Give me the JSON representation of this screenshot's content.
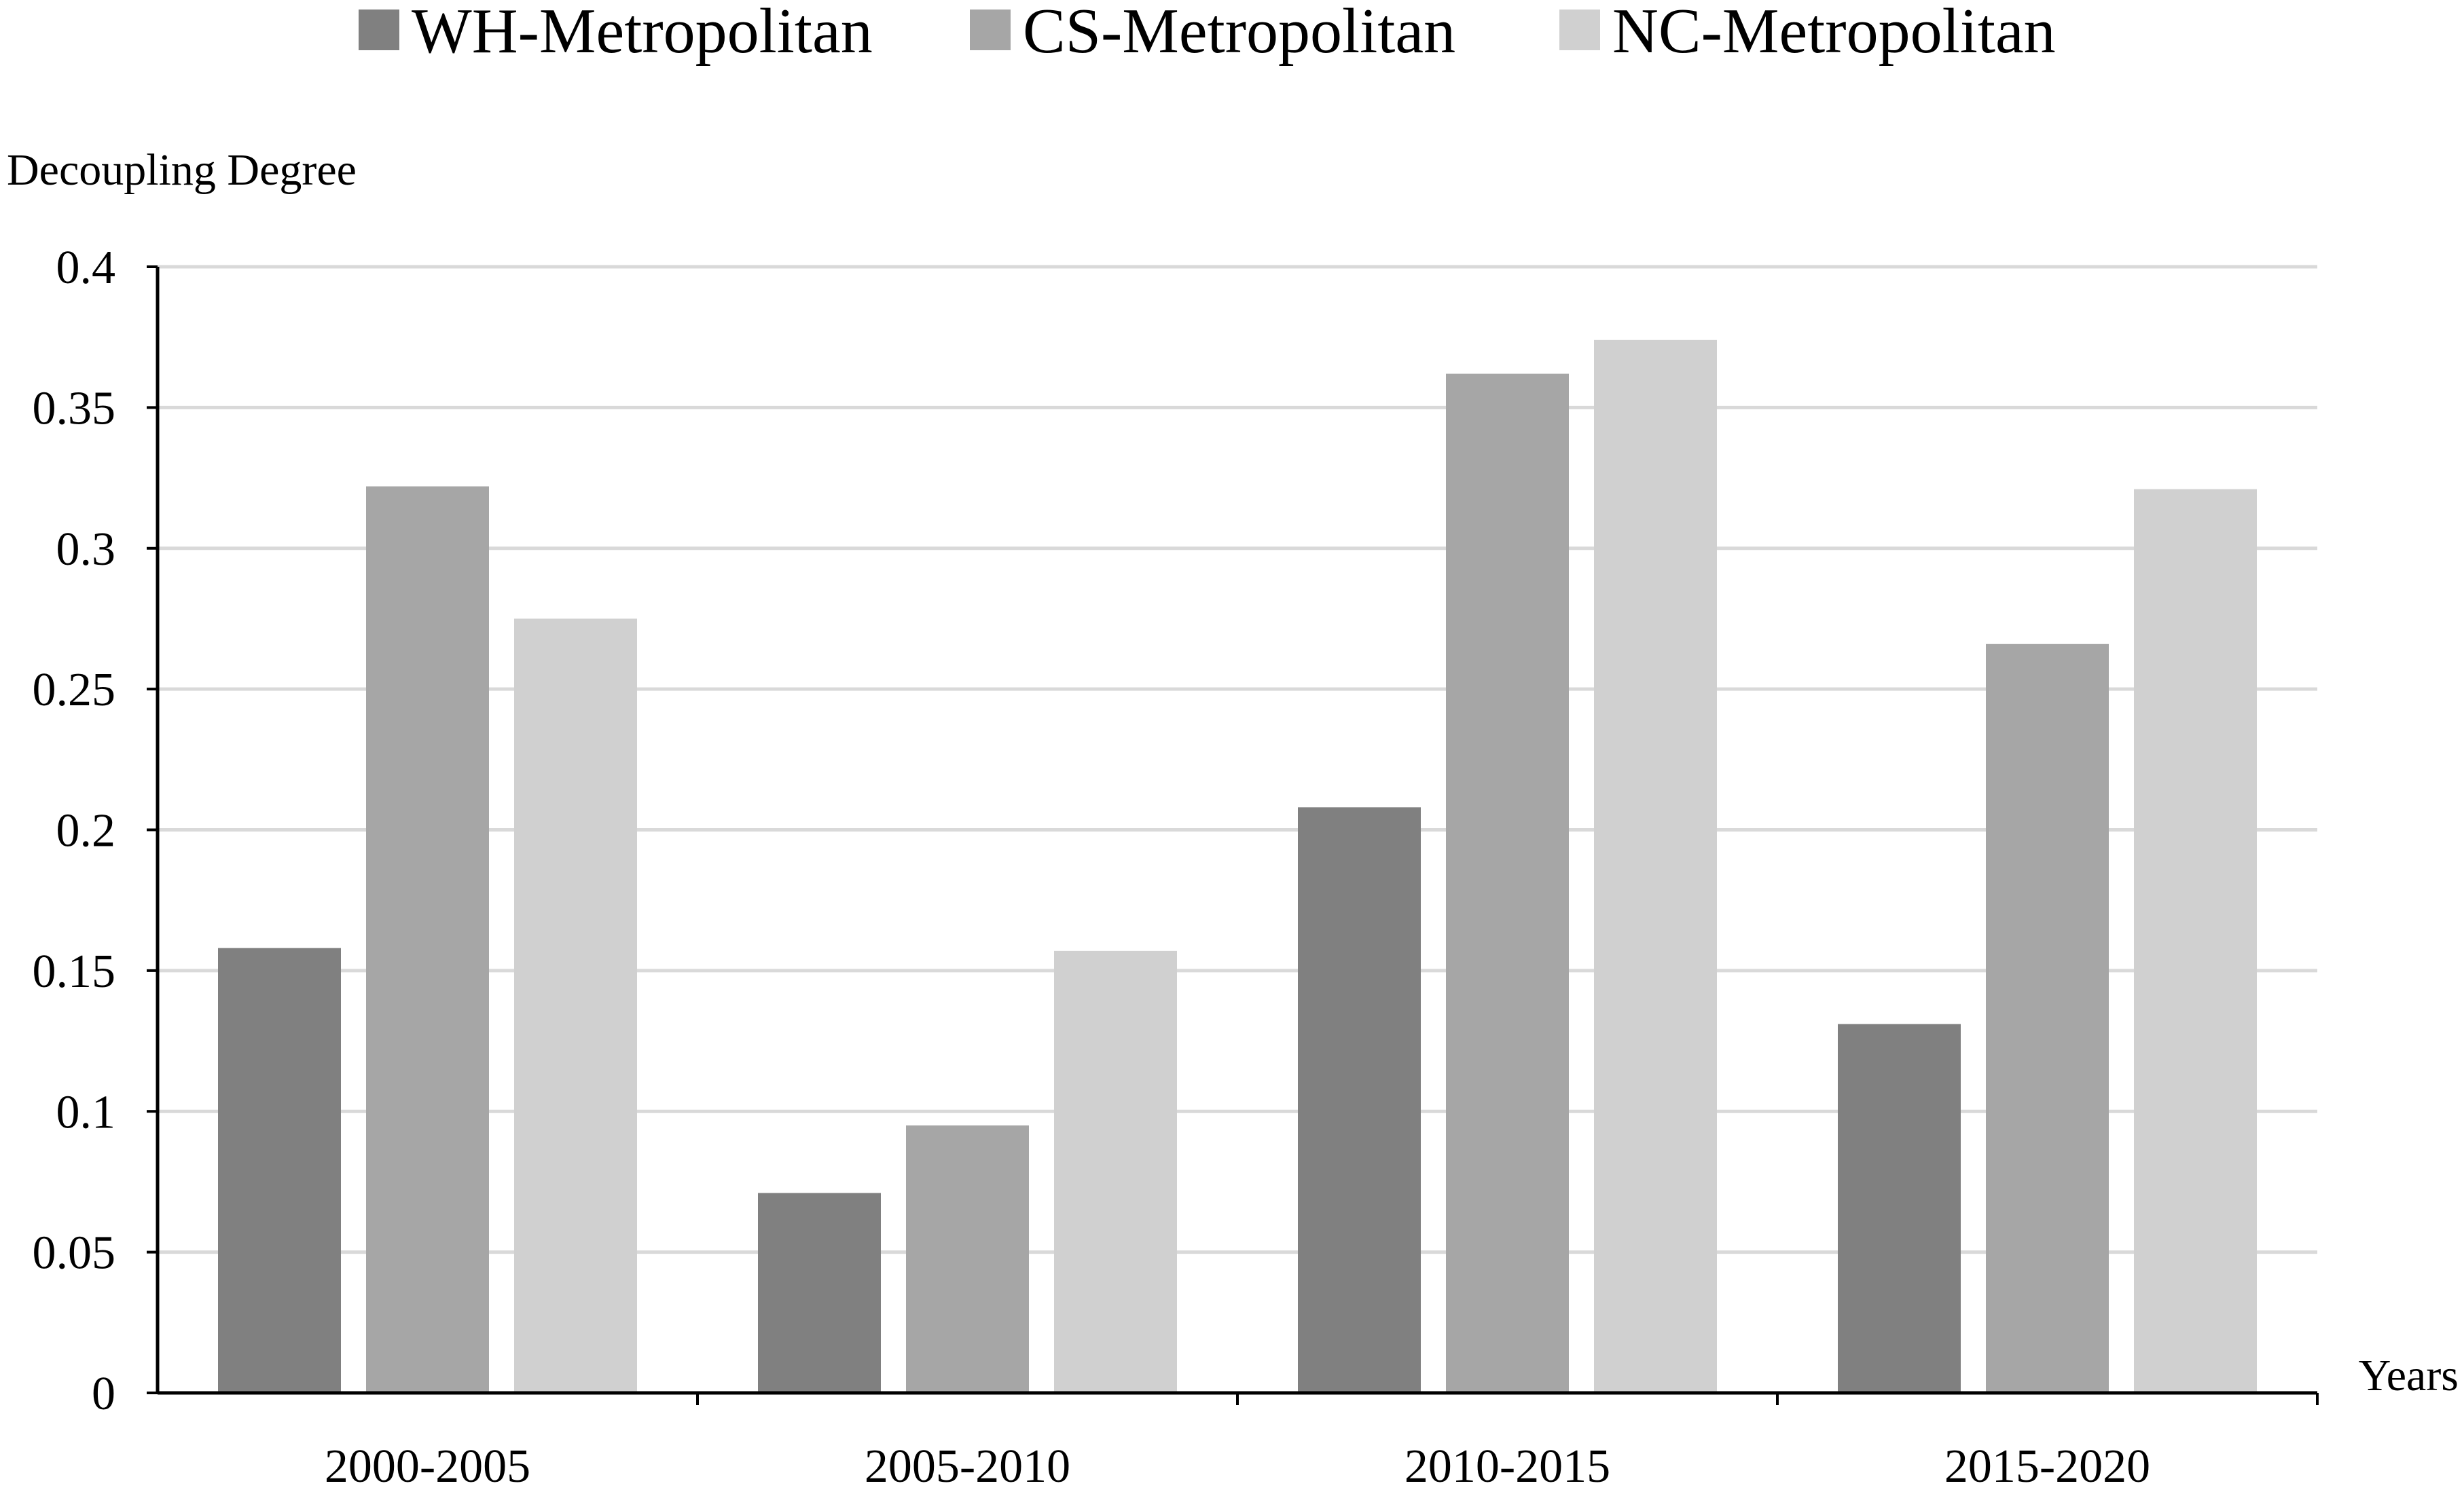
{
  "chart_data": {
    "type": "bar",
    "title": "",
    "ylabel": "Decoupling Degree",
    "xlabel": "Years",
    "categories": [
      "2000-2005",
      "2005-2010",
      "2010-2015",
      "2015-2020"
    ],
    "ylim": [
      0,
      0.4
    ],
    "yticks": [
      0,
      0.05,
      0.1,
      0.15,
      0.2,
      0.25,
      0.3,
      0.35,
      0.4
    ],
    "ytick_labels": [
      "0",
      "0.05",
      "0.1",
      "0.15",
      "0.2",
      "0.25",
      "0.3",
      "0.35",
      "0.4"
    ],
    "grid": true,
    "legend_position": "top-center",
    "series": [
      {
        "name": "WH-Metropolitan",
        "color": "#808080",
        "values": [
          0.158,
          0.071,
          0.208,
          0.131
        ]
      },
      {
        "name": "CS-Metropolitan",
        "color": "#a6a6a6",
        "values": [
          0.322,
          0.095,
          0.362,
          0.266
        ]
      },
      {
        "name": "NC-Metropolitan",
        "color": "#d0d0d0",
        "values": [
          0.275,
          0.157,
          0.374,
          0.321
        ]
      }
    ]
  }
}
